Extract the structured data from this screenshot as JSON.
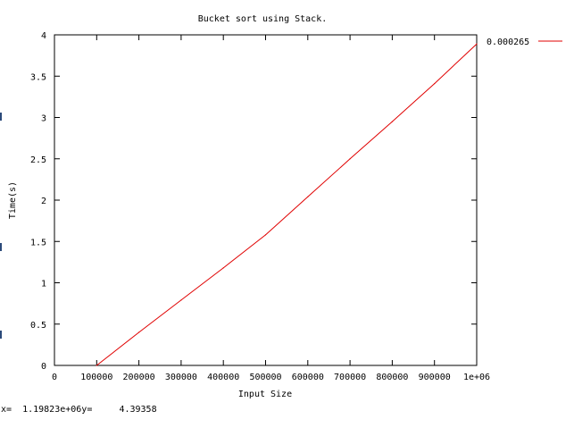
{
  "window": {
    "status_text": "x=  1.19823e+06y=     4.39358"
  },
  "colors": {
    "background": "#ffffff",
    "axis": "#000000",
    "series": "#e00000"
  },
  "chart_data": {
    "type": "line",
    "title": "Bucket sort using Stack.",
    "xlabel": "Input Size",
    "ylabel": "Time(s)",
    "xlim": [
      0,
      1000000
    ],
    "ylim": [
      0,
      4
    ],
    "x_ticks": [
      0,
      100000,
      200000,
      300000,
      400000,
      500000,
      600000,
      700000,
      800000,
      900000,
      1000000
    ],
    "x_tick_labels": [
      "0",
      "100000",
      "200000",
      "300000",
      "400000",
      "500000",
      "600000",
      "700000",
      "800000",
      "900000",
      "1e+06"
    ],
    "y_ticks": [
      0,
      0.5,
      1,
      1.5,
      2,
      2.5,
      3,
      3.5,
      4
    ],
    "y_tick_labels": [
      "0",
      "0.5",
      "1",
      "1.5",
      "2",
      "2.5",
      "3",
      "3.5",
      "4"
    ],
    "grid": false,
    "legend_position": "outside-right-top",
    "series": [
      {
        "name": "0.000265",
        "color": "#e00000",
        "x": [
          100000,
          200000,
          300000,
          400000,
          500000,
          600000,
          700000,
          800000,
          900000,
          1000000
        ],
        "y": [
          0.0,
          0.4,
          0.79,
          1.18,
          1.58,
          2.04,
          2.5,
          2.95,
          3.41,
          3.89
        ]
      }
    ]
  }
}
